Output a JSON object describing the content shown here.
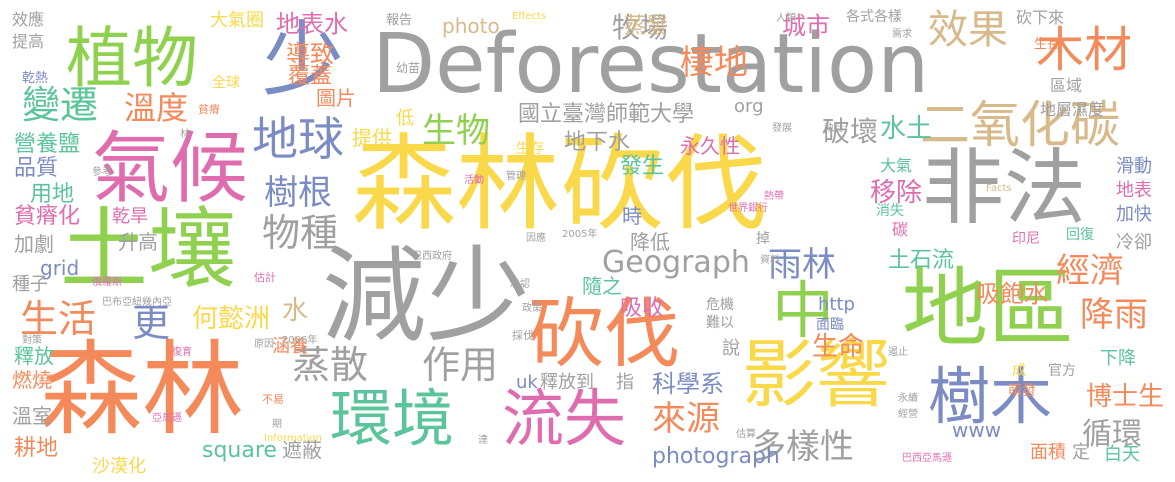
{
  "palette": {
    "gray": "#a0a0a0",
    "orange": "#f4895a",
    "green": "#8fd14f",
    "yellow": "#f9d84a",
    "pink": "#e06cb0",
    "blue": "#7b8cc4",
    "teal": "#5bc49a",
    "tan": "#d8b98a",
    "red": "#f07070"
  },
  "words": [
    {
      "text": "Deforestation",
      "color": "gray"
    },
    {
      "text": "森林砍伐",
      "color": "yellow"
    },
    {
      "text": "非法",
      "color": "gray"
    },
    {
      "text": "減少",
      "color": "gray"
    },
    {
      "text": "森林",
      "color": "orange"
    },
    {
      "text": "土壤",
      "color": "green"
    },
    {
      "text": "地區",
      "color": "green"
    },
    {
      "text": "氣候",
      "color": "pink"
    },
    {
      "text": "植物",
      "color": "green"
    },
    {
      "text": "少",
      "color": "blue"
    },
    {
      "text": "砍伐",
      "color": "orange"
    },
    {
      "text": "影響",
      "color": "yellow"
    },
    {
      "text": "中",
      "color": "green"
    },
    {
      "text": "樹木",
      "color": "blue"
    },
    {
      "text": "二氧化碳",
      "color": "tan"
    },
    {
      "text": "環境",
      "color": "teal"
    },
    {
      "text": "流失",
      "color": "pink"
    },
    {
      "text": "木材",
      "color": "orange"
    },
    {
      "text": "地球",
      "color": "blue"
    },
    {
      "text": "變遷",
      "color": "teal"
    },
    {
      "text": "效果",
      "color": "tan"
    },
    {
      "text": "棲地",
      "color": "orange"
    },
    {
      "text": "蒸散",
      "color": "gray"
    },
    {
      "text": "作用",
      "color": "gray"
    },
    {
      "text": "物種",
      "color": "gray"
    },
    {
      "text": "Geograph",
      "color": "gray"
    },
    {
      "text": "國立臺灣師範大學",
      "color": "gray"
    },
    {
      "text": "生物",
      "color": "green"
    },
    {
      "text": "溫度",
      "color": "orange"
    },
    {
      "text": "樹根",
      "color": "blue"
    },
    {
      "text": "雨林",
      "color": "blue"
    },
    {
      "text": "多樣性",
      "color": "gray"
    },
    {
      "text": "來源",
      "color": "orange"
    },
    {
      "text": "生活",
      "color": "orange"
    },
    {
      "text": "經濟",
      "color": "orange"
    },
    {
      "text": "降雨",
      "color": "orange"
    },
    {
      "text": "循環",
      "color": "gray"
    },
    {
      "text": "博士生",
      "color": "orange"
    },
    {
      "text": "破壞",
      "color": "gray"
    },
    {
      "text": "水土",
      "color": "teal"
    },
    {
      "text": "牧場",
      "color": "gray"
    },
    {
      "text": "何懿洲",
      "color": "yellow"
    },
    {
      "text": "更",
      "color": "blue"
    },
    {
      "text": "水",
      "color": "tan"
    },
    {
      "text": "生命",
      "color": "orange"
    },
    {
      "text": "移除",
      "color": "pink"
    },
    {
      "text": "吸飽水",
      "color": "orange"
    },
    {
      "text": "土石流",
      "color": "teal"
    },
    {
      "text": "科學系",
      "color": "blue"
    },
    {
      "text": "城市",
      "color": "pink"
    },
    {
      "text": "地表水",
      "color": "pink"
    },
    {
      "text": "蒸發",
      "color": "tan"
    },
    {
      "text": "大氣圈",
      "color": "yellow"
    },
    {
      "text": "導致",
      "color": "orange"
    },
    {
      "text": "覆蓋",
      "color": "orange"
    },
    {
      "text": "圖片",
      "color": "orange"
    },
    {
      "text": "photo",
      "color": "tan"
    },
    {
      "text": "地下水",
      "color": "gray"
    },
    {
      "text": "發生",
      "color": "teal"
    },
    {
      "text": "永久性",
      "color": "pink"
    },
    {
      "text": "提供",
      "color": "yellow"
    },
    {
      "text": "降低",
      "color": "gray"
    },
    {
      "text": "隨之",
      "color": "teal"
    },
    {
      "text": "吸收",
      "color": "pink"
    },
    {
      "text": "時",
      "color": "blue"
    },
    {
      "text": "營養鹽",
      "color": "teal"
    },
    {
      "text": "品質",
      "color": "blue"
    },
    {
      "text": "用地",
      "color": "teal"
    },
    {
      "text": "貧瘠化",
      "color": "pink"
    },
    {
      "text": "乾旱",
      "color": "pink"
    },
    {
      "text": "加劇",
      "color": "gray"
    },
    {
      "text": "升高",
      "color": "gray"
    },
    {
      "text": "grid",
      "color": "blue"
    },
    {
      "text": "種子",
      "color": "gray"
    },
    {
      "text": "釋放",
      "color": "teal"
    },
    {
      "text": "燃燒",
      "color": "orange"
    },
    {
      "text": "溫室",
      "color": "gray"
    },
    {
      "text": "耕地",
      "color": "orange"
    },
    {
      "text": "沙漠化",
      "color": "yellow"
    },
    {
      "text": "square",
      "color": "teal"
    },
    {
      "text": "遮蔽",
      "color": "gray"
    },
    {
      "text": "photograph",
      "color": "blue"
    },
    {
      "text": "www",
      "color": "blue"
    },
    {
      "text": "面積",
      "color": "orange"
    },
    {
      "text": "定",
      "color": "gray"
    },
    {
      "text": "白天",
      "color": "teal"
    },
    {
      "text": "下降",
      "color": "teal"
    },
    {
      "text": "滑動",
      "color": "blue"
    },
    {
      "text": "地表",
      "color": "pink"
    },
    {
      "text": "加快",
      "color": "blue"
    },
    {
      "text": "冷卻",
      "color": "gray"
    },
    {
      "text": "回復",
      "color": "teal"
    },
    {
      "text": "印尼",
      "color": "pink"
    },
    {
      "text": "http",
      "color": "blue"
    },
    {
      "text": "uk",
      "color": "blue"
    },
    {
      "text": "釋放到",
      "color": "gray"
    },
    {
      "text": "指",
      "color": "gray"
    },
    {
      "text": "說",
      "color": "gray"
    },
    {
      "text": "涵養",
      "color": "orange"
    },
    {
      "text": "org",
      "color": "gray"
    },
    {
      "text": "低",
      "color": "yellow"
    },
    {
      "text": "效應",
      "color": "gray"
    },
    {
      "text": "提高",
      "color": "gray"
    },
    {
      "text": "乾熱",
      "color": "blue"
    },
    {
      "text": "區域",
      "color": "gray"
    },
    {
      "text": "地層濕度",
      "color": "gray"
    },
    {
      "text": "砍下來",
      "color": "gray"
    },
    {
      "text": "生長",
      "color": "orange"
    },
    {
      "text": "各式各樣",
      "color": "gray"
    },
    {
      "text": "報告",
      "color": "gray"
    },
    {
      "text": "全球",
      "color": "yellow"
    },
    {
      "text": "幼苗",
      "color": "gray"
    },
    {
      "text": "生存",
      "color": "yellow"
    },
    {
      "text": "大氣",
      "color": "teal"
    },
    {
      "text": "碳",
      "color": "pink"
    },
    {
      "text": "消失",
      "color": "teal"
    },
    {
      "text": "掉",
      "color": "gray"
    },
    {
      "text": "危機",
      "color": "gray"
    },
    {
      "text": "難以",
      "color": "gray"
    },
    {
      "text": "面臨",
      "color": "blue"
    },
    {
      "text": "成",
      "color": "yellow"
    },
    {
      "text": "官方",
      "color": "gray"
    },
    {
      "text": "萌發",
      "color": "orange"
    },
    {
      "text": "Effects",
      "color": "yellow"
    },
    {
      "text": "人類",
      "color": "gray"
    },
    {
      "text": "需求",
      "color": "gray"
    },
    {
      "text": "貧瘠",
      "color": "orange"
    },
    {
      "text": "參考",
      "color": "gray"
    },
    {
      "text": "林",
      "color": "gray"
    },
    {
      "text": "發展",
      "color": "gray"
    },
    {
      "text": "執行",
      "color": "gray"
    },
    {
      "text": "活動",
      "color": "pink"
    },
    {
      "text": "管理",
      "color": "gray"
    },
    {
      "text": "熱帶",
      "color": "pink"
    },
    {
      "text": "Facts",
      "color": "tan"
    },
    {
      "text": "世界銀行",
      "color": "pink"
    },
    {
      "text": "因應",
      "color": "gray"
    },
    {
      "text": "2005年",
      "color": "gray"
    },
    {
      "text": "資料",
      "color": "gray"
    },
    {
      "text": "巴西政府",
      "color": "gray"
    },
    {
      "text": "估計",
      "color": "pink"
    },
    {
      "text": "俄羅斯",
      "color": "pink"
    },
    {
      "text": "巴布亞紐幾內亞",
      "color": "gray"
    },
    {
      "text": "承認",
      "color": "gray"
    },
    {
      "text": "政策",
      "color": "gray"
    },
    {
      "text": "採伐",
      "color": "gray"
    },
    {
      "text": "2006年",
      "color": "gray"
    },
    {
      "text": "原因",
      "color": "gray"
    },
    {
      "text": "對策",
      "color": "gray"
    },
    {
      "text": "復育",
      "color": "pink"
    },
    {
      "text": "不易",
      "color": "orange"
    },
    {
      "text": "亞馬遜",
      "color": "pink"
    },
    {
      "text": "期",
      "color": "gray"
    },
    {
      "text": "Information",
      "color": "yellow"
    },
    {
      "text": "達",
      "color": "gray"
    },
    {
      "text": "估算",
      "color": "gray"
    },
    {
      "text": "巴西亞馬遜",
      "color": "pink"
    },
    {
      "text": "永續",
      "color": "gray"
    },
    {
      "text": "經營",
      "color": "gray"
    },
    {
      "text": "遏止",
      "color": "gray"
    }
  ]
}
